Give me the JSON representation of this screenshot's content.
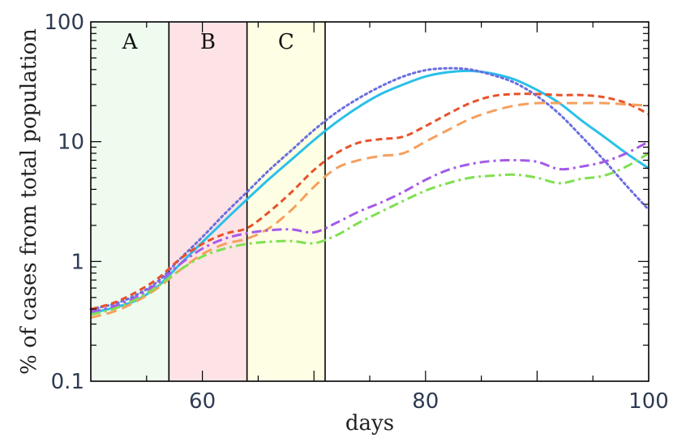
{
  "chart_data": {
    "type": "line",
    "title": "",
    "xlabel": "days",
    "ylabel": "% of cases from total population",
    "xlim": [
      50,
      100
    ],
    "ylim": [
      0.1,
      100
    ],
    "yscale": "log",
    "x_ticks": [
      {
        "value": 60,
        "label": "60"
      },
      {
        "value": 80,
        "label": "80"
      },
      {
        "value": 100,
        "label": "100"
      }
    ],
    "y_ticks": [
      {
        "value": 0.1,
        "label": "0.1"
      },
      {
        "value": 1,
        "label": "1"
      },
      {
        "value": 10,
        "label": "10"
      },
      {
        "value": 100,
        "label": "100"
      }
    ],
    "regions": [
      {
        "label": "A",
        "x_start": 50,
        "x_end": 57,
        "fill": "#eefbee"
      },
      {
        "label": "B",
        "x_start": 57,
        "x_end": 64,
        "fill": "#fde3e5"
      },
      {
        "label": "C",
        "x_start": 64,
        "x_end": 71,
        "fill": "#fefee4"
      }
    ],
    "series": [
      {
        "name": "solid-cyan",
        "color": "#29c0e8",
        "dash": "solid",
        "x": [
          50,
          52,
          54,
          56,
          58,
          60,
          62,
          64,
          66,
          68,
          70,
          72,
          74,
          76,
          78,
          80,
          82,
          84,
          86,
          88,
          90,
          92,
          94,
          96,
          98,
          100
        ],
        "y": [
          0.37,
          0.41,
          0.47,
          0.62,
          0.95,
          1.45,
          2.2,
          3.3,
          4.9,
          7.1,
          10.3,
          14.5,
          19.5,
          25,
          30,
          35,
          38,
          39,
          37,
          33,
          27,
          21,
          15,
          11,
          8,
          6
        ]
      },
      {
        "name": "dotted-blue",
        "color": "#6b6ee0",
        "dash": "dotted",
        "x": [
          50,
          52,
          54,
          56,
          58,
          60,
          62,
          64,
          66,
          68,
          70,
          72,
          74,
          76,
          78,
          80,
          82,
          84,
          86,
          88,
          90,
          92,
          94,
          96,
          98,
          100
        ],
        "y": [
          0.4,
          0.44,
          0.52,
          0.68,
          1.05,
          1.6,
          2.5,
          3.8,
          5.8,
          8.5,
          12.5,
          17.5,
          23,
          29,
          35,
          39.5,
          41,
          40,
          36,
          31,
          24,
          17,
          11,
          7,
          4.3,
          2.7
        ]
      },
      {
        "name": "short-dash-red",
        "color": "#e8522a",
        "dash": "short-dash",
        "x": [
          50,
          52,
          54,
          56,
          58,
          60,
          62,
          64,
          66,
          68,
          70,
          72,
          74,
          76,
          78,
          80,
          82,
          84,
          86,
          88,
          90,
          92,
          94,
          96,
          98,
          100
        ],
        "y": [
          0.4,
          0.45,
          0.55,
          0.72,
          1.05,
          1.4,
          1.7,
          1.9,
          2.6,
          3.8,
          5.8,
          8,
          9.8,
          10.5,
          11,
          13.5,
          17,
          21,
          24,
          25,
          25,
          24.5,
          24.5,
          23.5,
          21,
          17
        ]
      },
      {
        "name": "long-dash-orange",
        "color": "#f5a05e",
        "dash": "long-dash",
        "x": [
          50,
          52,
          54,
          56,
          58,
          60,
          62,
          64,
          66,
          68,
          70,
          72,
          74,
          76,
          78,
          80,
          82,
          84,
          86,
          88,
          90,
          92,
          94,
          96,
          98,
          100
        ],
        "y": [
          0.34,
          0.38,
          0.46,
          0.6,
          0.85,
          1.15,
          1.4,
          1.55,
          1.9,
          2.7,
          4.2,
          6,
          7,
          7.6,
          8,
          10,
          12.5,
          15.5,
          18,
          20,
          21,
          21,
          21,
          21,
          20.5,
          20
        ]
      },
      {
        "name": "dash-dot-purple",
        "color": "#a55ae8",
        "dash": "dash-dot",
        "x": [
          50,
          52,
          54,
          56,
          58,
          60,
          62,
          64,
          66,
          68,
          70,
          72,
          74,
          76,
          78,
          80,
          82,
          84,
          86,
          88,
          90,
          92,
          94,
          96,
          98,
          100
        ],
        "y": [
          0.38,
          0.42,
          0.5,
          0.66,
          0.95,
          1.28,
          1.55,
          1.72,
          1.82,
          1.85,
          1.75,
          2.1,
          2.6,
          3.1,
          3.8,
          4.8,
          5.8,
          6.5,
          6.9,
          7,
          6.8,
          5.9,
          6.2,
          6.8,
          8,
          10
        ]
      },
      {
        "name": "dash-dot-green",
        "color": "#7fe050",
        "dash": "dash-dot",
        "x": [
          50,
          52,
          54,
          56,
          58,
          60,
          62,
          64,
          66,
          68,
          70,
          72,
          74,
          76,
          78,
          80,
          82,
          84,
          86,
          88,
          90,
          92,
          94,
          96,
          98,
          100
        ],
        "y": [
          0.36,
          0.4,
          0.48,
          0.62,
          0.85,
          1.1,
          1.28,
          1.4,
          1.46,
          1.48,
          1.42,
          1.65,
          2.1,
          2.6,
          3.2,
          3.9,
          4.5,
          5,
          5.2,
          5.3,
          5,
          4.5,
          4.9,
          5.2,
          6.2,
          8
        ]
      }
    ]
  }
}
